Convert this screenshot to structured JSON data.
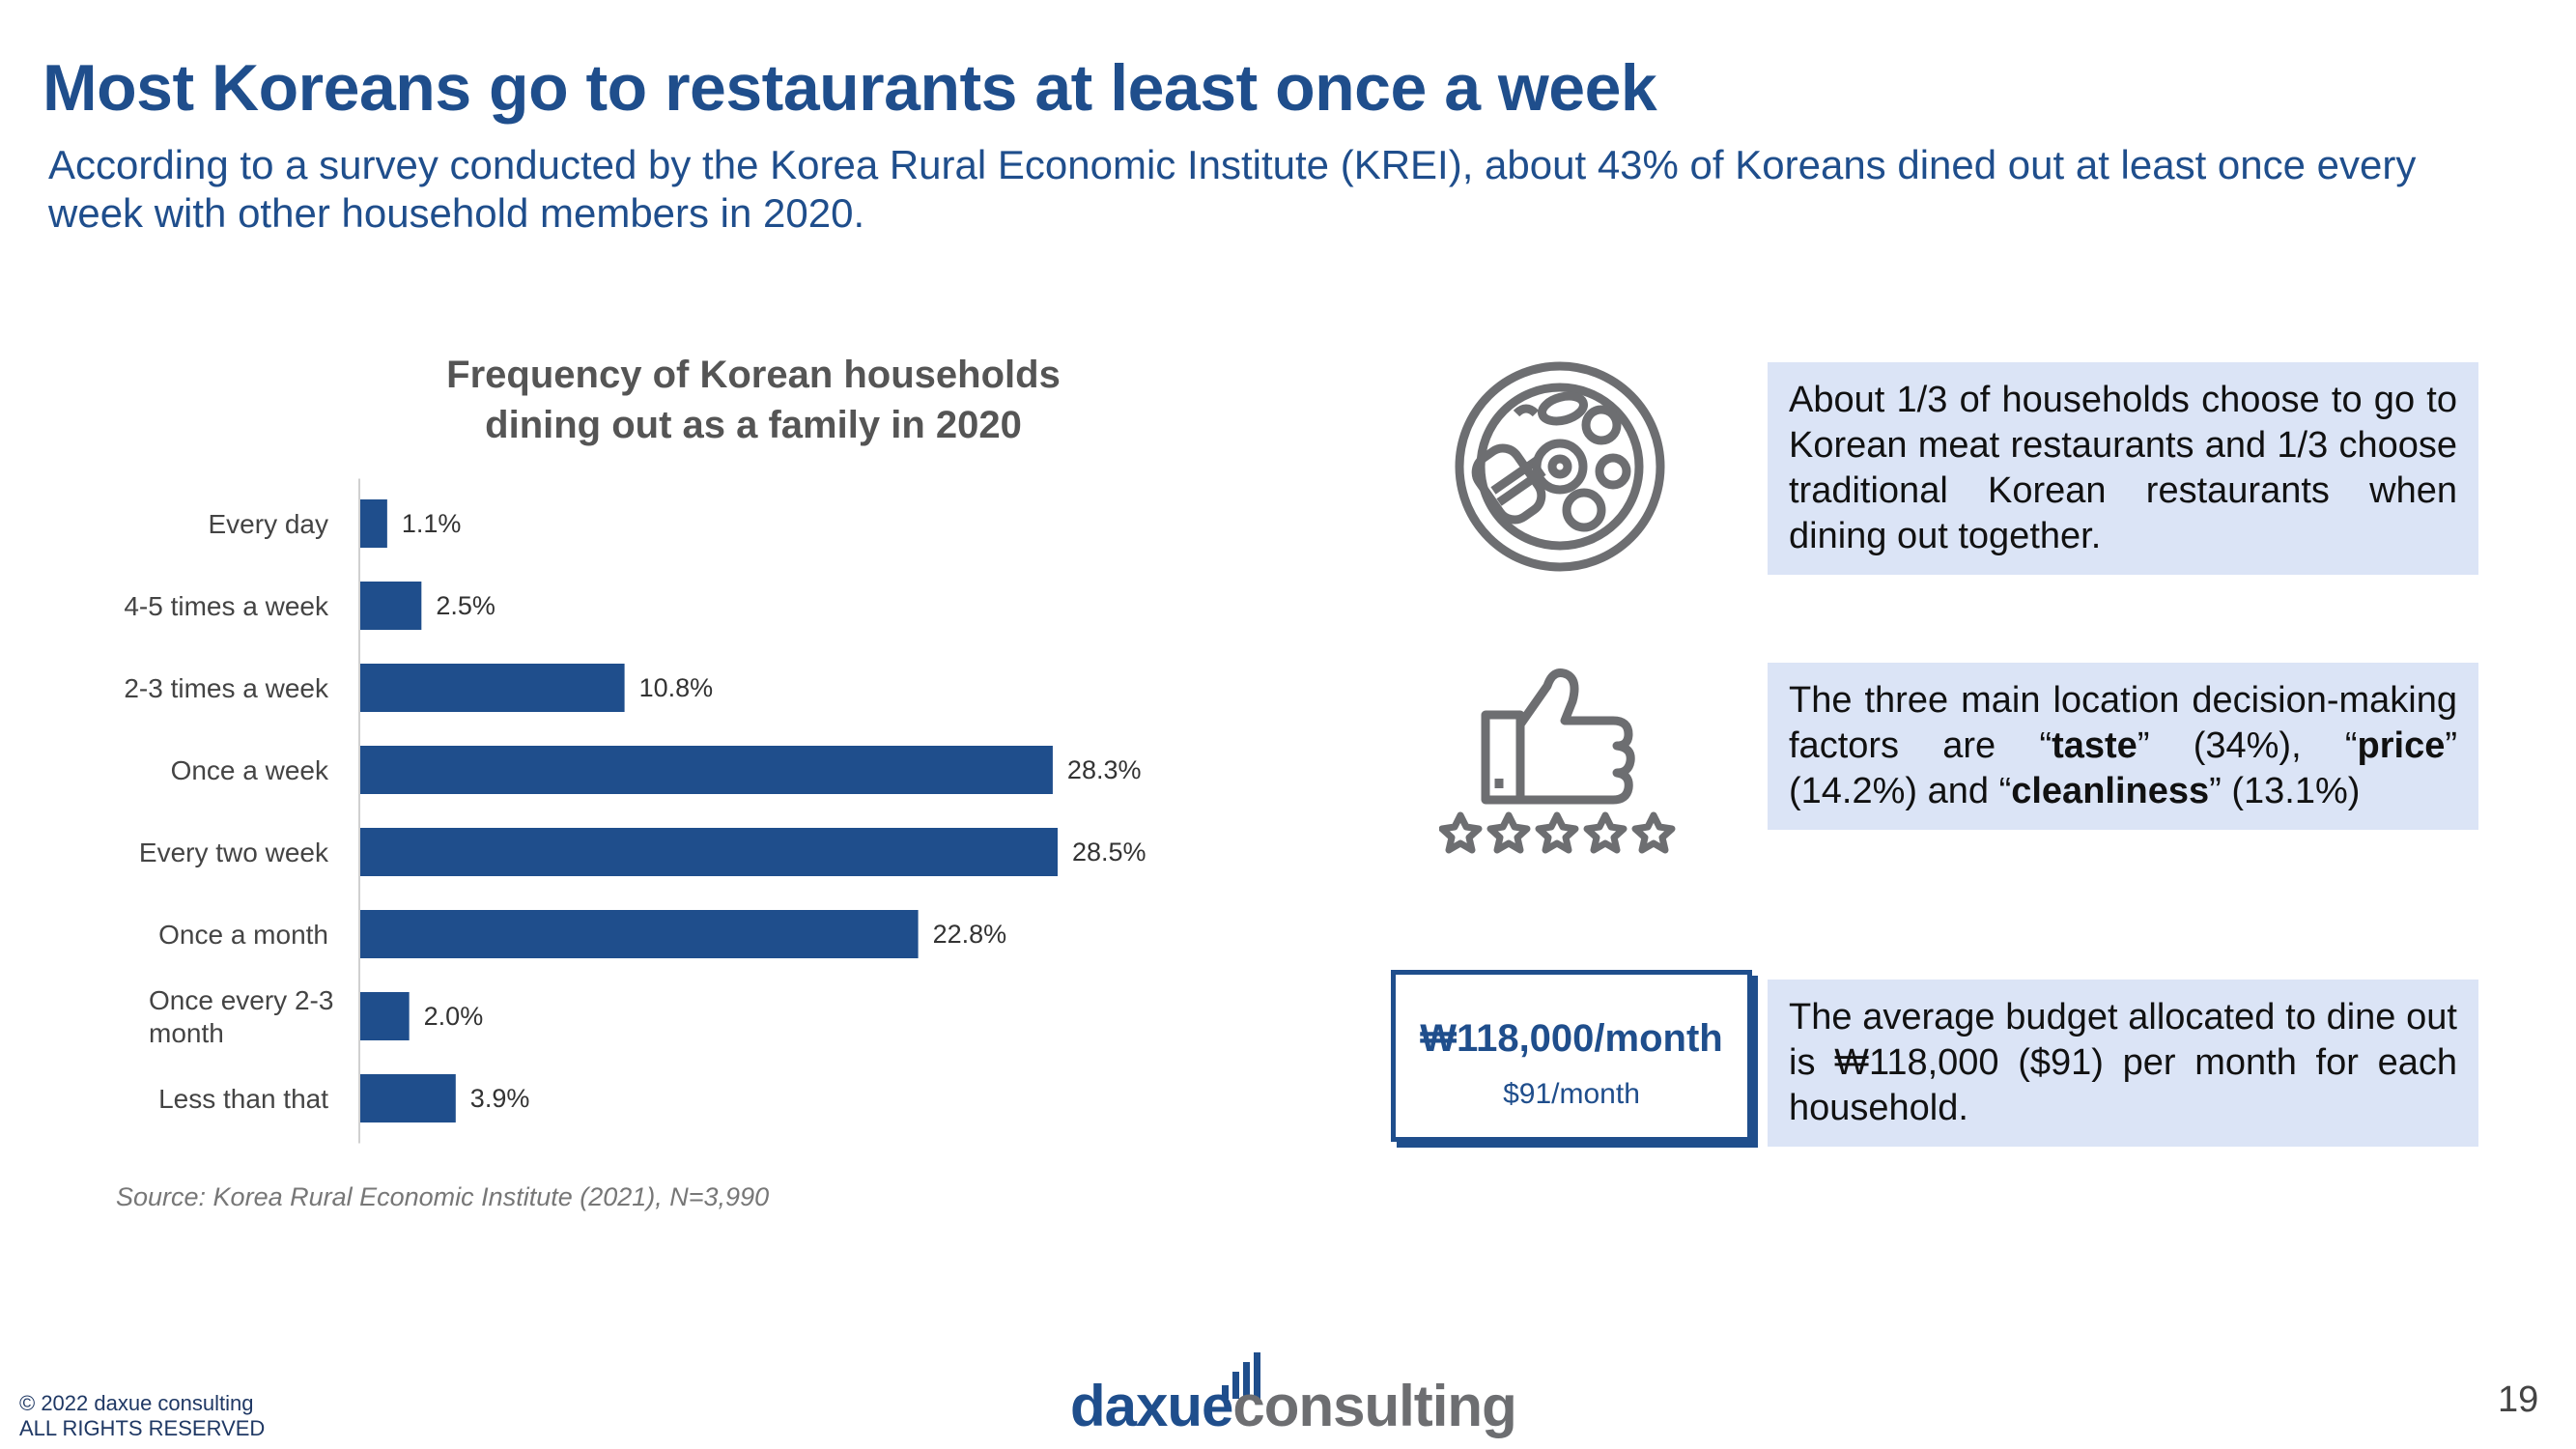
{
  "header": {
    "title": "Most Koreans go to restaurants at least once a week",
    "subtitle": "According to a survey conducted by the Korea Rural Economic Institute (KREI), about 43% of Koreans dined out at least once every week with other household members in 2020."
  },
  "chart_data": {
    "type": "bar",
    "orientation": "horizontal",
    "title_line1": "Frequency of Korean households",
    "title_line2": "dining out as a family in 2020",
    "categories": [
      [
        "Every day"
      ],
      [
        "4-5 times a week"
      ],
      [
        "2-3 times a week"
      ],
      [
        "Once a week"
      ],
      [
        "Every two week"
      ],
      [
        "Once a month"
      ],
      [
        "Once every 2-3",
        "month"
      ],
      [
        "Less than that"
      ]
    ],
    "values": [
      1.1,
      2.5,
      10.8,
      28.3,
      28.5,
      22.8,
      2.0,
      3.9
    ],
    "value_labels": [
      "1.1%",
      "2.5%",
      "10.8%",
      "28.3%",
      "28.5%",
      "22.8%",
      "2.0%",
      "3.9%"
    ],
    "xlim": [
      0,
      30
    ],
    "unit": "%",
    "bar_color": "#1f4e8c",
    "grid": false
  },
  "source": "Source: Korea Rural Economic Institute (2021), N=3,990",
  "insights": {
    "restaurants_text": "About 1/3 of households choose to go to Korean meat restaurants and 1/3 choose  traditional Korean restaurants when dining out together.",
    "factors": {
      "intro": "The three main location decision-making factors are ",
      "q1_open": "“",
      "taste": "taste",
      "taste_pct": "” (34%), “",
      "price": "price",
      "price_pct": "” (14.2%) and “",
      "cleanliness": "cleanliness",
      "cleanliness_pct": "” (13.1%)"
    },
    "budget_text": "The average budget allocated to dine out is ₩118,000 ($91) per month for each household.",
    "budget_krw": "₩118,000/month",
    "budget_usd": "$91/month"
  },
  "footer": {
    "copyright_line1": "© 2022 daxue consulting",
    "copyright_line2": "ALL RIGHTS RESERVED",
    "logo_part1": "daxue",
    "logo_part2": "consulting",
    "page_number": "19"
  },
  "colors": {
    "brand_blue": "#1f4e8c",
    "box_fill": "#dbe4f6",
    "logo_grey": "#6d6e71"
  }
}
